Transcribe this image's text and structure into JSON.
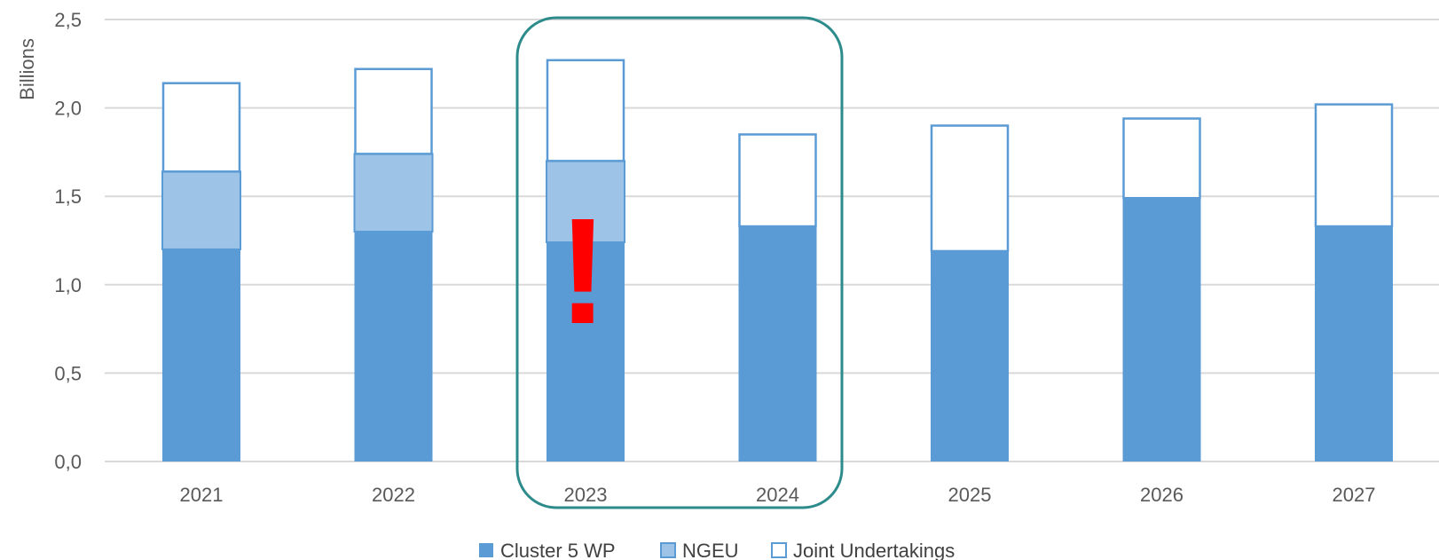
{
  "chart_data": {
    "type": "bar",
    "stacked": true,
    "categories": [
      "2021",
      "2022",
      "2023",
      "2024",
      "2025",
      "2026",
      "2027"
    ],
    "series": [
      {
        "name": "Cluster 5 WP",
        "values": [
          1.2,
          1.3,
          1.24,
          1.33,
          1.19,
          1.49,
          1.33
        ],
        "color": "#5b9bd5",
        "style": "filled"
      },
      {
        "name": "NGEU",
        "values": [
          0.44,
          0.44,
          0.46,
          0,
          0,
          0,
          0
        ],
        "color": "#9dc3e6",
        "style": "filled"
      },
      {
        "name": "Joint Undertakings",
        "values": [
          0.5,
          0.48,
          0.57,
          0.52,
          0.71,
          0.45,
          0.69
        ],
        "color": "#ffffff",
        "style": "outlined"
      }
    ],
    "ylabel": "Billions",
    "ylim": [
      0,
      2.5
    ],
    "yticks": [
      "0,0",
      "0,5",
      "1,0",
      "1,5",
      "2,0",
      "2,5"
    ],
    "yticks_values": [
      0,
      0.5,
      1.0,
      1.5,
      2.0,
      2.5
    ],
    "grid": true,
    "legend_position": "bottom-center",
    "highlight": {
      "categories": [
        "2023",
        "2024"
      ],
      "color": "#2e8b8b"
    },
    "annotation": {
      "text": "!",
      "category": "2023",
      "color": "#ff0000"
    },
    "outline_color": "#5b9bd5"
  }
}
